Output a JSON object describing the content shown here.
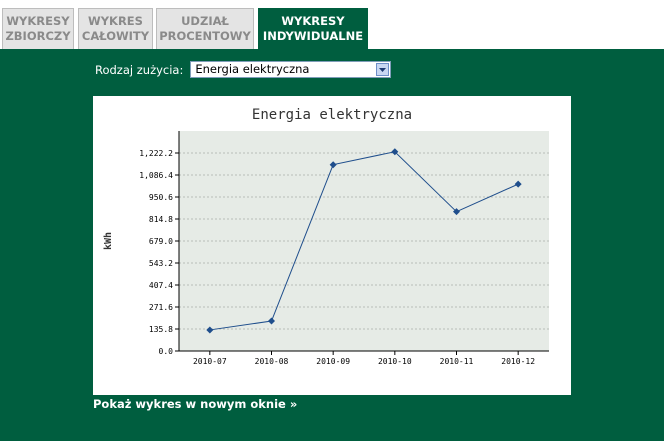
{
  "tabs": [
    {
      "label": "WYKRESY\nZBIORCZY"
    },
    {
      "label": "WYKRES\nCAŁOWITY"
    },
    {
      "label": "UDZIAŁ\nPROCENTOWY"
    },
    {
      "label": "WYKRESY\nINDYWIDUALNE"
    }
  ],
  "active_tab": 3,
  "usage": {
    "label": "Rodzaj zużycia:",
    "selected": "Energia elektryczna"
  },
  "link": {
    "label": "Pokaż wykres w nowym oknie »"
  },
  "colors": {
    "panel": "#005e3f",
    "plot_bg": "#e6ebe6",
    "line": "#1f4e8c"
  },
  "chart_data": {
    "type": "line",
    "title": "Energia elektryczna",
    "xlabel": "",
    "ylabel": "kWh",
    "categories": [
      "2010-07",
      "2010-08",
      "2010-09",
      "2010-10",
      "2010-11",
      "2010-12"
    ],
    "values": [
      130,
      185,
      1150,
      1230,
      860,
      1030
    ],
    "ylim": [
      0,
      1358
    ],
    "yticks": [
      "0.0",
      "135.8",
      "271.6",
      "407.4",
      "543.2",
      "679.0",
      "814.8",
      "950.6",
      "1,086.4",
      "1,222.2"
    ],
    "ytick_values": [
      0,
      135.8,
      271.6,
      407.4,
      543.2,
      679.0,
      814.8,
      950.6,
      1086.4,
      1222.2
    ],
    "grid": true,
    "legend": "none"
  }
}
